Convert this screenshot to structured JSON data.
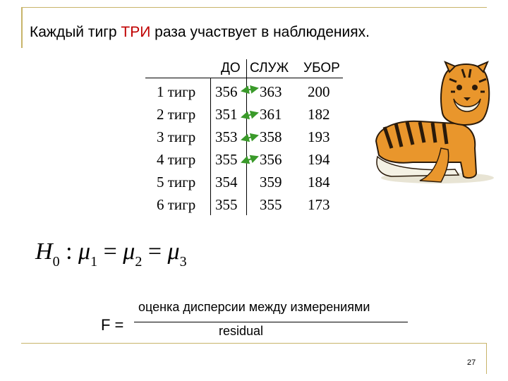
{
  "title": {
    "before": "Каждый тигр ",
    "highlight": "ТРИ",
    "after": " раза участвует в наблюдениях."
  },
  "table": {
    "headers": [
      "ДО",
      "СЛУЖ",
      "УБОР"
    ],
    "rows": [
      {
        "name": "1 тигр",
        "values": [
          "356",
          "363",
          "200"
        ]
      },
      {
        "name": "2 тигр",
        "values": [
          "351",
          "361",
          "182"
        ]
      },
      {
        "name": "3 тигр",
        "values": [
          "353",
          "358",
          "193"
        ]
      },
      {
        "name": "4 тигр",
        "values": [
          "355",
          "356",
          "194"
        ]
      },
      {
        "name": "5 тигр",
        "values": [
          "354",
          "359",
          "184"
        ]
      },
      {
        "name": "6 тигр",
        "values": [
          "355",
          "355",
          "173"
        ]
      }
    ]
  },
  "hypothesis": {
    "h": "H",
    "h_sub": "0",
    "colon": ":",
    "mu": "μ",
    "sub1": "1",
    "sub2": "2",
    "sub3": "3",
    "eq": "="
  },
  "f_formula": {
    "label": "F =",
    "numerator": "оценка дисперсии между измерениями",
    "denominator": "residual"
  },
  "page_number": "27",
  "colors": {
    "highlight": "#c00000",
    "arrow": "#3a9a2a",
    "frame": "#c8b46a"
  }
}
